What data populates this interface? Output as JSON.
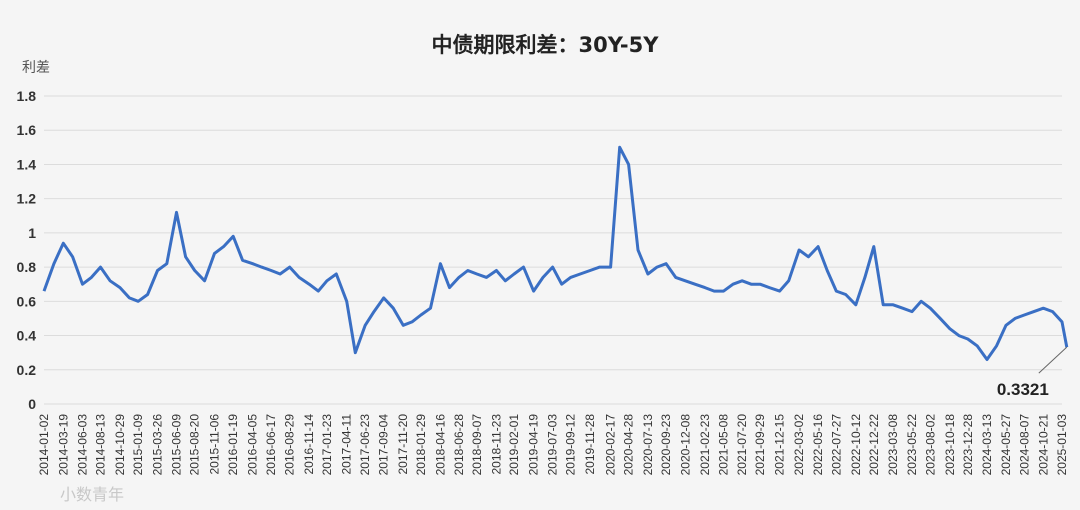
{
  "chart_data": {
    "type": "line",
    "title": "中债期限利差：30Y-5Y",
    "ylabel": "利差",
    "ylim": [
      0,
      1.8
    ],
    "yticks": [
      "0",
      "0.2",
      "0.4",
      "0.6",
      "0.8",
      "1",
      "1.2",
      "1.4",
      "1.6",
      "1.8"
    ],
    "grid": true,
    "line_color": "#3a6fc4",
    "x_tick_labels": [
      "2014-01-02",
      "2014-03-19",
      "2014-06-03",
      "2014-08-13",
      "2014-10-29",
      "2015-01-09",
      "2015-03-26",
      "2015-06-09",
      "2015-08-20",
      "2015-11-06",
      "2016-01-19",
      "2016-04-05",
      "2016-06-17",
      "2016-08-29",
      "2016-11-14",
      "2017-01-23",
      "2017-04-11",
      "2017-06-23",
      "2017-09-04",
      "2017-11-20",
      "2018-01-29",
      "2018-04-16",
      "2018-06-28",
      "2018-09-07",
      "2018-11-23",
      "2019-02-01",
      "2019-04-19",
      "2019-07-03",
      "2019-09-12",
      "2019-11-28",
      "2020-02-17",
      "2020-04-28",
      "2020-07-13",
      "2020-09-23",
      "2020-12-08",
      "2021-02-23",
      "2021-05-08",
      "2021-07-20",
      "2021-09-29",
      "2021-12-15",
      "2022-03-02",
      "2022-05-16",
      "2022-07-27",
      "2022-10-12",
      "2022-12-22",
      "2023-03-08",
      "2023-05-22",
      "2023-08-02",
      "2023-10-18",
      "2023-12-28",
      "2024-03-13",
      "2024-05-27",
      "2024-08-07",
      "2024-10-21",
      "2025-01-03"
    ],
    "series": [
      {
        "x": [
          "2014-01-02",
          "2014-02-10",
          "2014-03-19",
          "2014-04-25",
          "2014-06-03",
          "2014-07-08",
          "2014-08-13",
          "2014-09-20",
          "2014-10-29",
          "2014-12-05",
          "2015-01-09",
          "2015-02-15",
          "2015-03-26",
          "2015-05-02",
          "2015-06-09",
          "2015-07-15",
          "2015-08-20",
          "2015-09-28",
          "2015-11-06",
          "2015-12-12",
          "2016-01-19",
          "2016-02-25",
          "2016-04-05",
          "2016-05-10",
          "2016-06-17",
          "2016-07-22",
          "2016-08-29",
          "2016-10-05",
          "2016-11-14",
          "2016-12-20",
          "2017-01-23",
          "2017-03-01",
          "2017-04-11",
          "2017-05-15",
          "2017-06-23",
          "2017-07-28",
          "2017-09-04",
          "2017-10-12",
          "2017-11-20",
          "2017-12-25",
          "2018-01-29",
          "2018-03-08",
          "2018-04-16",
          "2018-05-22",
          "2018-06-28",
          "2018-08-02",
          "2018-09-07",
          "2018-10-15",
          "2018-11-23",
          "2018-12-28",
          "2019-02-01",
          "2019-03-10",
          "2019-04-19",
          "2019-05-26",
          "2019-07-03",
          "2019-08-08",
          "2019-09-12",
          "2019-10-20",
          "2019-11-28",
          "2020-01-05",
          "2020-02-17",
          "2020-03-24",
          "2020-04-28",
          "2020-06-04",
          "2020-07-13",
          "2020-08-18",
          "2020-09-23",
          "2020-10-31",
          "2020-12-08",
          "2021-01-15",
          "2021-02-23",
          "2021-04-01",
          "2021-05-08",
          "2021-06-14",
          "2021-07-20",
          "2021-08-25",
          "2021-09-29",
          "2021-11-05",
          "2021-12-15",
          "2022-01-20",
          "2022-03-02",
          "2022-04-08",
          "2022-05-16",
          "2022-06-21",
          "2022-07-27",
          "2022-09-02",
          "2022-10-12",
          "2022-11-17",
          "2022-12-22",
          "2023-01-28",
          "2023-03-08",
          "2023-04-15",
          "2023-05-22",
          "2023-06-27",
          "2023-08-02",
          "2023-09-10",
          "2023-10-18",
          "2023-11-23",
          "2023-12-28",
          "2024-02-03",
          "2024-03-13",
          "2024-04-20",
          "2024-05-27",
          "2024-07-02",
          "2024-08-07",
          "2024-09-14",
          "2024-10-21",
          "2024-11-27",
          "2025-01-03",
          "2025-01-22"
        ],
        "values": [
          0.66,
          0.82,
          0.94,
          0.86,
          0.7,
          0.74,
          0.8,
          0.72,
          0.68,
          0.62,
          0.6,
          0.64,
          0.78,
          0.82,
          1.12,
          0.86,
          0.78,
          0.72,
          0.88,
          0.92,
          0.98,
          0.84,
          0.82,
          0.8,
          0.78,
          0.76,
          0.8,
          0.74,
          0.7,
          0.66,
          0.72,
          0.76,
          0.6,
          0.3,
          0.46,
          0.54,
          0.62,
          0.56,
          0.46,
          0.48,
          0.52,
          0.56,
          0.82,
          0.68,
          0.74,
          0.78,
          0.76,
          0.74,
          0.78,
          0.72,
          0.76,
          0.8,
          0.66,
          0.74,
          0.8,
          0.7,
          0.74,
          0.76,
          0.78,
          0.8,
          0.8,
          1.5,
          1.4,
          0.9,
          0.76,
          0.8,
          0.82,
          0.74,
          0.72,
          0.7,
          0.68,
          0.66,
          0.66,
          0.7,
          0.72,
          0.7,
          0.7,
          0.68,
          0.66,
          0.72,
          0.9,
          0.86,
          0.92,
          0.78,
          0.66,
          0.64,
          0.58,
          0.74,
          0.92,
          0.58,
          0.58,
          0.56,
          0.54,
          0.6,
          0.56,
          0.5,
          0.44,
          0.4,
          0.38,
          0.34,
          0.26,
          0.34,
          0.46,
          0.5,
          0.52,
          0.54,
          0.56,
          0.54,
          0.48,
          0.3321
        ]
      }
    ],
    "annotation": "0.3321"
  },
  "watermark": "小数青年"
}
